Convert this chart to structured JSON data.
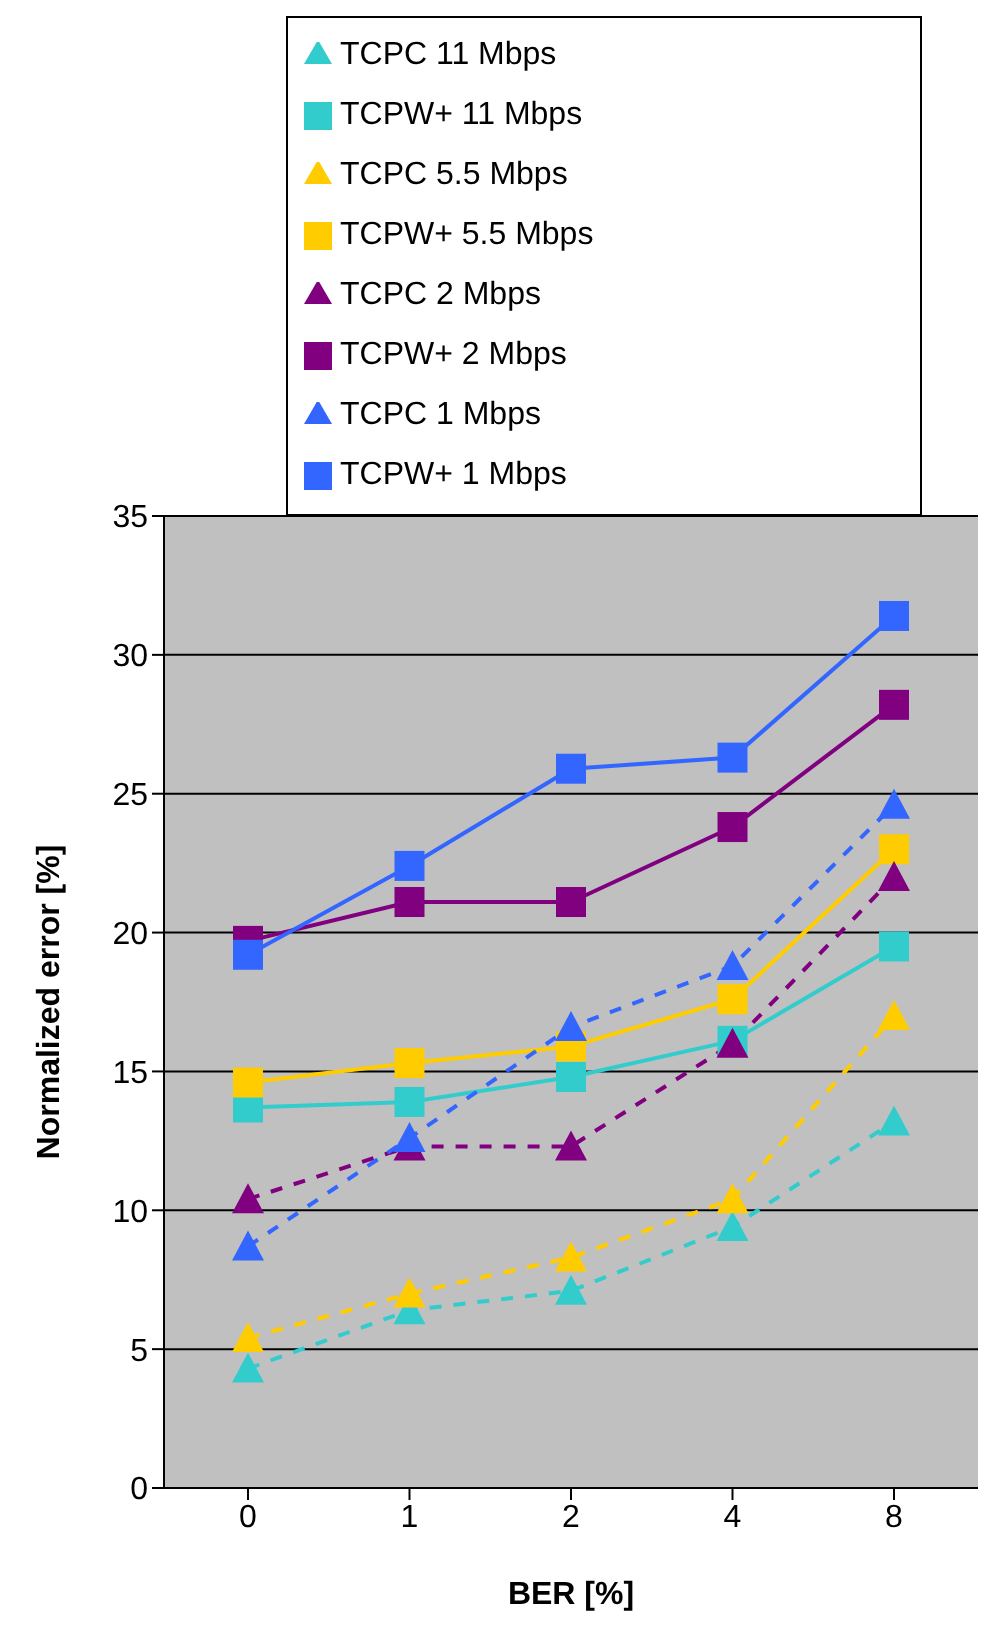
{
  "chart_data": {
    "type": "line",
    "xlabel": "BER [%]",
    "ylabel": "Normalized error [%]",
    "categories": [
      "0",
      "1",
      "2",
      "4",
      "8"
    ],
    "ylim": [
      0,
      35
    ],
    "yticks": [
      0,
      5,
      10,
      15,
      20,
      25,
      30,
      35
    ],
    "grid": "y",
    "legend": "top",
    "series": [
      {
        "name": "TCPC 11 Mbps",
        "color": "#33cccc",
        "marker": "triangle",
        "line_style": "dashed",
        "values": [
          4.3,
          6.4,
          7.1,
          9.4,
          13.2
        ]
      },
      {
        "name": "TCPW+ 11 Mbps",
        "color": "#33cccc",
        "marker": "square",
        "line_style": "solid",
        "values": [
          13.7,
          13.9,
          14.8,
          16.1,
          19.5
        ]
      },
      {
        "name": "TCPC 5.5 Mbps",
        "color": "#ffcc00",
        "marker": "triangle",
        "line_style": "dashed",
        "values": [
          5.4,
          7.0,
          8.3,
          10.4,
          17.0
        ]
      },
      {
        "name": "TCPW+ 5.5 Mbps",
        "color": "#ffcc00",
        "marker": "square",
        "line_style": "solid",
        "values": [
          14.6,
          15.3,
          15.9,
          17.6,
          23.0
        ]
      },
      {
        "name": "TCPC 2 Mbps",
        "color": "#800080",
        "marker": "triangle",
        "line_style": "dashed",
        "values": [
          10.4,
          12.3,
          12.3,
          16.0,
          22.0
        ]
      },
      {
        "name": "TCPW+ 2 Mbps",
        "color": "#800080",
        "marker": "square",
        "line_style": "solid",
        "values": [
          19.7,
          21.1,
          21.1,
          23.8,
          28.2
        ]
      },
      {
        "name": "TCPC 1 Mbps",
        "color": "#3366ff",
        "marker": "triangle",
        "line_style": "dashed",
        "values": [
          8.7,
          12.6,
          16.6,
          18.8,
          24.6
        ]
      },
      {
        "name": "TCPW+ 1 Mbps",
        "color": "#3366ff",
        "marker": "square",
        "line_style": "solid",
        "values": [
          19.2,
          22.4,
          25.9,
          26.3,
          31.4
        ]
      }
    ]
  }
}
